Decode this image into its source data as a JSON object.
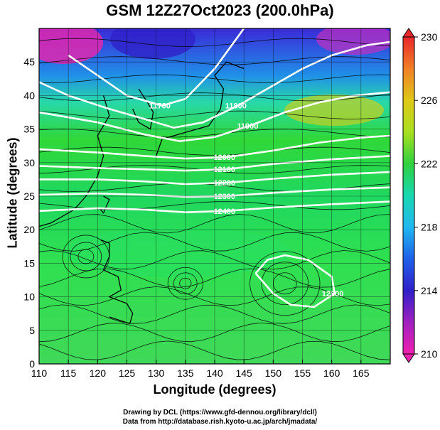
{
  "title": "GSM 12Z27Oct2023 (200.0hPa)",
  "xlabel": "Longitude (degrees)",
  "ylabel": "Latitude  (degrees)",
  "credits": [
    "Drawing by DCL (https://www.gfd-dennou.org/library/dcl/)",
    "Data from http://database.rish.kyoto-u.ac.jp/arch/jmadata/"
  ],
  "colorbar": {
    "ticks": [
      "230",
      "226",
      "222",
      "218",
      "214",
      "210"
    ],
    "colors": [
      "#e8272b",
      "#f08028",
      "#e0c818",
      "#a8e020",
      "#30d040",
      "#18d8b0",
      "#20b8f0",
      "#2060e8",
      "#3020c8",
      "#a020c0",
      "#f020b0"
    ]
  },
  "contour_labels": [
    "11700",
    "11800",
    "11900",
    "12000",
    "12100",
    "12200",
    "12300",
    "12400",
    "12500"
  ],
  "chart_data": {
    "type": "heatmap",
    "title": "GSM 12Z27Oct2023 (200.0hPa)",
    "xlabel": "Longitude (degrees)",
    "ylabel": "Latitude  (degrees)",
    "xlim": [
      110,
      170
    ],
    "ylim": [
      0,
      50
    ],
    "xticks": [
      110,
      115,
      120,
      125,
      130,
      135,
      140,
      145,
      150,
      155,
      160,
      165
    ],
    "yticks": [
      0,
      5,
      10,
      15,
      20,
      25,
      30,
      35,
      40,
      45
    ],
    "color_range": [
      210,
      230
    ],
    "contour_lines": [
      {
        "label": "11700",
        "points": [
          [
            115,
            46
          ],
          [
            120,
            43
          ],
          [
            125,
            40
          ],
          [
            131,
            38.5
          ],
          [
            135,
            39.5
          ],
          [
            140,
            44
          ],
          [
            145,
            50
          ]
        ]
      },
      {
        "label": "11800",
        "points": [
          [
            110,
            42
          ],
          [
            115,
            40
          ],
          [
            122,
            38
          ],
          [
            128,
            36.5
          ],
          [
            133,
            35.2
          ],
          [
            138,
            36
          ],
          [
            144,
            38.5
          ],
          [
            150,
            41.5
          ],
          [
            155,
            44
          ],
          [
            160,
            46
          ],
          [
            166,
            47.5
          ],
          [
            170,
            48
          ]
        ]
      },
      {
        "label": "11900",
        "points": [
          [
            110,
            37.5
          ],
          [
            120,
            36
          ],
          [
            128,
            34.2
          ],
          [
            134,
            33.2
          ],
          [
            140,
            33.8
          ],
          [
            146,
            35.5
          ],
          [
            152,
            37.5
          ],
          [
            158,
            39
          ],
          [
            164,
            40
          ],
          [
            170,
            40.5
          ]
        ]
      },
      {
        "label": "12000",
        "points": [
          [
            110,
            32
          ],
          [
            120,
            31.5
          ],
          [
            128,
            31
          ],
          [
            135,
            30.6
          ],
          [
            142,
            30.8
          ],
          [
            150,
            31.8
          ],
          [
            158,
            33
          ],
          [
            166,
            33.8
          ],
          [
            170,
            34
          ]
        ]
      },
      {
        "label": "12100",
        "points": [
          [
            110,
            29.5
          ],
          [
            120,
            29.2
          ],
          [
            128,
            29
          ],
          [
            135,
            28.8
          ],
          [
            142,
            29
          ],
          [
            150,
            29.8
          ],
          [
            160,
            30.5
          ],
          [
            170,
            31
          ]
        ]
      },
      {
        "label": "12200",
        "points": [
          [
            110,
            27.5
          ],
          [
            120,
            27.5
          ],
          [
            128,
            27.2
          ],
          [
            135,
            26.8
          ],
          [
            142,
            27
          ],
          [
            150,
            27.6
          ],
          [
            160,
            28.2
          ],
          [
            170,
            28.6
          ]
        ]
      },
      {
        "label": "12300",
        "points": [
          [
            110,
            25.2
          ],
          [
            120,
            25.4
          ],
          [
            128,
            25.2
          ],
          [
            135,
            24.9
          ],
          [
            142,
            25
          ],
          [
            150,
            25.5
          ],
          [
            160,
            26
          ],
          [
            170,
            26.3
          ]
        ]
      },
      {
        "label": "12400",
        "points": [
          [
            110,
            22.8
          ],
          [
            120,
            23.2
          ],
          [
            128,
            23
          ],
          [
            135,
            22.6
          ],
          [
            142,
            22.8
          ],
          [
            150,
            23.3
          ],
          [
            160,
            23.8
          ],
          [
            170,
            24.2
          ]
        ]
      },
      {
        "label": "12500",
        "points": [
          [
            147,
            13.5
          ],
          [
            149,
            15.5
          ],
          [
            152,
            16.2
          ],
          [
            156,
            15.5
          ],
          [
            160,
            13
          ],
          [
            160.5,
            10.5
          ],
          [
            157,
            8.5
          ],
          [
            153,
            8.8
          ],
          [
            150,
            10.5
          ],
          [
            148,
            12.5
          ],
          [
            147,
            13.5
          ]
        ]
      }
    ]
  }
}
